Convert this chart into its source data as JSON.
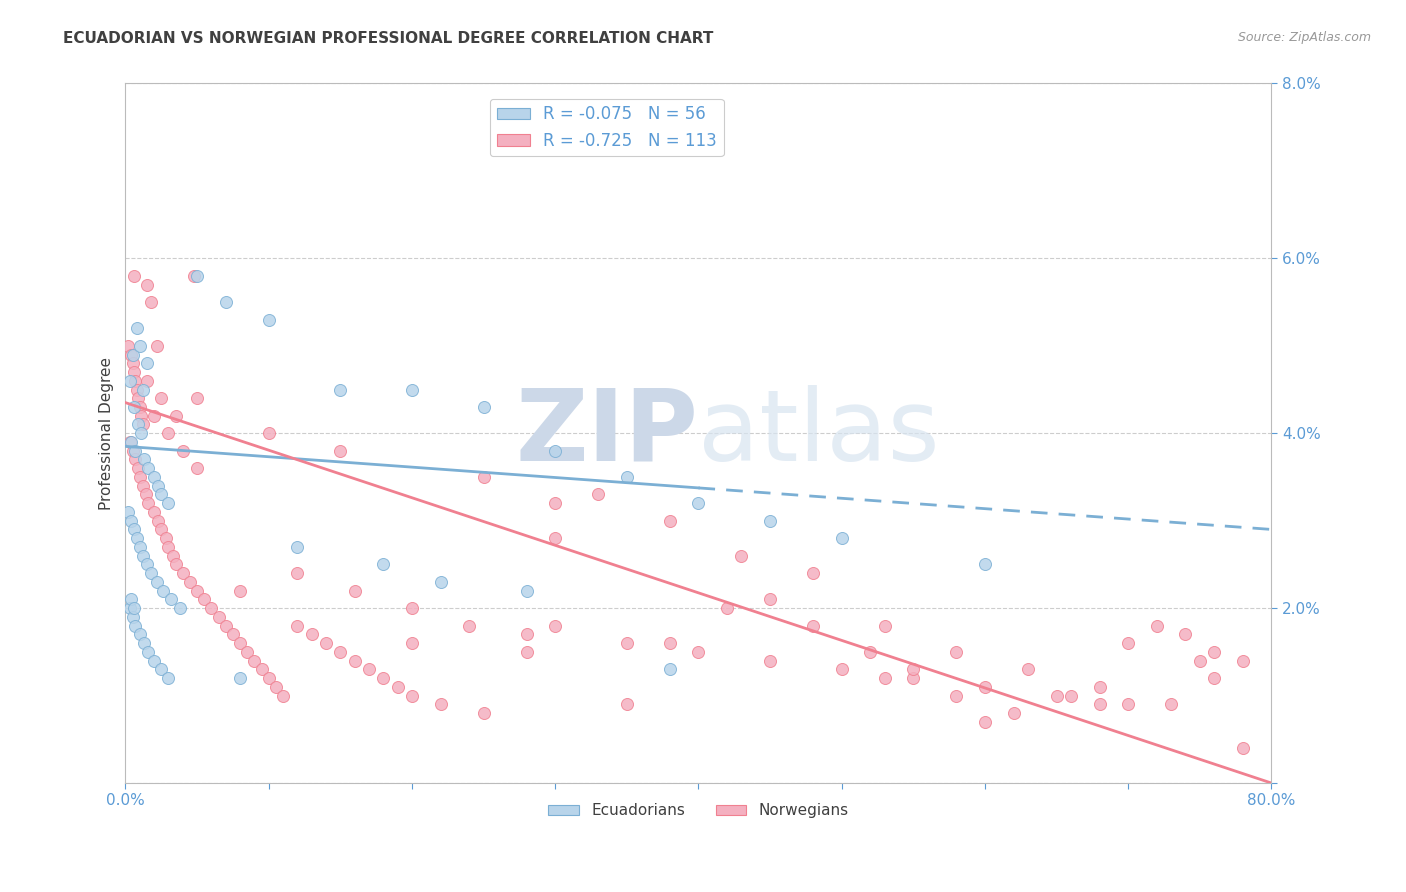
{
  "title": "ECUADORIAN VS NORWEGIAN PROFESSIONAL DEGREE CORRELATION CHART",
  "source": "Source: ZipAtlas.com",
  "ylabel": "Professional Degree",
  "ecu_color": "#7bafd4",
  "nor_color": "#f08090",
  "ecu_scatter_color": "#b8d4ea",
  "nor_scatter_color": "#f4b0c0",
  "background_color": "#ffffff",
  "grid_color": "#c8c8c8",
  "title_color": "#404040",
  "axis_label_color": "#5b9bd5",
  "watermark_zip": "ZIP",
  "watermark_atlas": "atlas",
  "watermark_color": "#ccd8e8",
  "xlim": [
    0,
    80
  ],
  "ylim": [
    0,
    8
  ],
  "yticks": [
    0,
    2,
    4,
    6,
    8
  ],
  "xtick_positions": [
    0,
    10,
    20,
    30,
    40,
    50,
    60,
    70,
    80
  ],
  "ecu_line_x0": 0,
  "ecu_line_x1": 80,
  "ecu_line_y0": 3.85,
  "ecu_line_y1": 2.9,
  "ecu_solid_end": 40,
  "nor_line_x0": 0,
  "nor_line_x1": 80,
  "nor_line_y0": 4.35,
  "nor_line_y1": 0.0,
  "scatter_ecuadorians": [
    [
      0.5,
      4.9
    ],
    [
      0.8,
      5.2
    ],
    [
      1.0,
      5.0
    ],
    [
      1.5,
      4.8
    ],
    [
      1.2,
      4.5
    ],
    [
      0.3,
      4.6
    ],
    [
      0.6,
      4.3
    ],
    [
      0.9,
      4.1
    ],
    [
      1.1,
      4.0
    ],
    [
      0.4,
      3.9
    ],
    [
      0.7,
      3.8
    ],
    [
      1.3,
      3.7
    ],
    [
      1.6,
      3.6
    ],
    [
      2.0,
      3.5
    ],
    [
      2.3,
      3.4
    ],
    [
      2.5,
      3.3
    ],
    [
      3.0,
      3.2
    ],
    [
      0.2,
      3.1
    ],
    [
      0.4,
      3.0
    ],
    [
      0.6,
      2.9
    ],
    [
      0.8,
      2.8
    ],
    [
      1.0,
      2.7
    ],
    [
      1.2,
      2.6
    ],
    [
      1.5,
      2.5
    ],
    [
      1.8,
      2.4
    ],
    [
      2.2,
      2.3
    ],
    [
      2.6,
      2.2
    ],
    [
      3.2,
      2.1
    ],
    [
      3.8,
      2.0
    ],
    [
      0.3,
      2.0
    ],
    [
      0.5,
      1.9
    ],
    [
      0.7,
      1.8
    ],
    [
      1.0,
      1.7
    ],
    [
      1.3,
      1.6
    ],
    [
      1.6,
      1.5
    ],
    [
      2.0,
      1.4
    ],
    [
      2.5,
      1.3
    ],
    [
      3.0,
      1.2
    ],
    [
      0.4,
      2.1
    ],
    [
      0.6,
      2.0
    ],
    [
      5.0,
      5.8
    ],
    [
      7.0,
      5.5
    ],
    [
      10.0,
      5.3
    ],
    [
      15.0,
      4.5
    ],
    [
      20.0,
      4.5
    ],
    [
      25.0,
      4.3
    ],
    [
      30.0,
      3.8
    ],
    [
      35.0,
      3.5
    ],
    [
      40.0,
      3.2
    ],
    [
      45.0,
      3.0
    ],
    [
      22.0,
      2.3
    ],
    [
      12.0,
      2.7
    ],
    [
      18.0,
      2.5
    ],
    [
      28.0,
      2.2
    ],
    [
      50.0,
      2.8
    ],
    [
      60.0,
      2.5
    ],
    [
      38.0,
      1.3
    ],
    [
      8.0,
      1.2
    ]
  ],
  "scatter_norwegians": [
    [
      0.2,
      5.0
    ],
    [
      0.4,
      4.9
    ],
    [
      0.5,
      4.8
    ],
    [
      0.6,
      4.7
    ],
    [
      0.7,
      4.6
    ],
    [
      0.8,
      4.5
    ],
    [
      0.9,
      4.4
    ],
    [
      1.0,
      4.3
    ],
    [
      1.1,
      4.2
    ],
    [
      1.2,
      4.1
    ],
    [
      0.3,
      3.9
    ],
    [
      0.5,
      3.8
    ],
    [
      0.7,
      3.7
    ],
    [
      0.9,
      3.6
    ],
    [
      1.0,
      3.5
    ],
    [
      1.2,
      3.4
    ],
    [
      1.4,
      3.3
    ],
    [
      1.6,
      3.2
    ],
    [
      2.0,
      3.1
    ],
    [
      2.3,
      3.0
    ],
    [
      2.5,
      2.9
    ],
    [
      2.8,
      2.8
    ],
    [
      3.0,
      2.7
    ],
    [
      3.3,
      2.6
    ],
    [
      3.5,
      2.5
    ],
    [
      4.0,
      2.4
    ],
    [
      4.5,
      2.3
    ],
    [
      5.0,
      2.2
    ],
    [
      5.5,
      2.1
    ],
    [
      6.0,
      2.0
    ],
    [
      6.5,
      1.9
    ],
    [
      7.0,
      1.8
    ],
    [
      7.5,
      1.7
    ],
    [
      8.0,
      1.6
    ],
    [
      8.5,
      1.5
    ],
    [
      9.0,
      1.4
    ],
    [
      9.5,
      1.3
    ],
    [
      10.0,
      1.2
    ],
    [
      10.5,
      1.1
    ],
    [
      11.0,
      1.0
    ],
    [
      0.6,
      5.8
    ],
    [
      1.5,
      5.7
    ],
    [
      1.8,
      5.5
    ],
    [
      2.2,
      5.0
    ],
    [
      4.8,
      5.8
    ],
    [
      12.0,
      1.8
    ],
    [
      13.0,
      1.7
    ],
    [
      14.0,
      1.6
    ],
    [
      15.0,
      1.5
    ],
    [
      16.0,
      1.4
    ],
    [
      17.0,
      1.3
    ],
    [
      18.0,
      1.2
    ],
    [
      19.0,
      1.1
    ],
    [
      20.0,
      1.0
    ],
    [
      22.0,
      0.9
    ],
    [
      25.0,
      0.8
    ],
    [
      28.0,
      1.7
    ],
    [
      30.0,
      1.8
    ],
    [
      35.0,
      1.6
    ],
    [
      40.0,
      1.5
    ],
    [
      45.0,
      1.4
    ],
    [
      50.0,
      1.3
    ],
    [
      55.0,
      1.2
    ],
    [
      60.0,
      1.1
    ],
    [
      65.0,
      1.0
    ],
    [
      70.0,
      0.9
    ],
    [
      72.0,
      1.8
    ],
    [
      74.0,
      1.7
    ],
    [
      76.0,
      1.5
    ],
    [
      78.0,
      1.4
    ],
    [
      42.0,
      2.0
    ],
    [
      45.0,
      2.1
    ],
    [
      38.0,
      1.6
    ],
    [
      52.0,
      1.5
    ],
    [
      58.0,
      1.0
    ],
    [
      62.0,
      0.8
    ],
    [
      66.0,
      1.0
    ],
    [
      68.0,
      0.9
    ],
    [
      30.0,
      2.8
    ],
    [
      35.0,
      0.9
    ],
    [
      2.0,
      4.2
    ],
    [
      3.0,
      4.0
    ],
    [
      4.0,
      3.8
    ],
    [
      5.0,
      3.6
    ],
    [
      20.0,
      1.6
    ],
    [
      48.0,
      1.8
    ],
    [
      53.0,
      1.2
    ],
    [
      55.0,
      1.3
    ],
    [
      60.0,
      0.7
    ],
    [
      76.0,
      1.2
    ],
    [
      78.0,
      0.4
    ],
    [
      33.0,
      3.3
    ],
    [
      38.0,
      3.0
    ],
    [
      43.0,
      2.6
    ],
    [
      48.0,
      2.4
    ],
    [
      53.0,
      1.8
    ],
    [
      58.0,
      1.5
    ],
    [
      63.0,
      1.3
    ],
    [
      68.0,
      1.1
    ],
    [
      73.0,
      0.9
    ],
    [
      25.0,
      3.5
    ],
    [
      30.0,
      3.2
    ],
    [
      15.0,
      3.8
    ],
    [
      10.0,
      4.0
    ],
    [
      5.0,
      4.4
    ],
    [
      1.5,
      4.6
    ],
    [
      2.5,
      4.4
    ],
    [
      3.5,
      4.2
    ],
    [
      70.0,
      1.6
    ],
    [
      75.0,
      1.4
    ],
    [
      8.0,
      2.2
    ],
    [
      12.0,
      2.4
    ],
    [
      16.0,
      2.2
    ],
    [
      20.0,
      2.0
    ],
    [
      24.0,
      1.8
    ],
    [
      28.0,
      1.5
    ]
  ]
}
